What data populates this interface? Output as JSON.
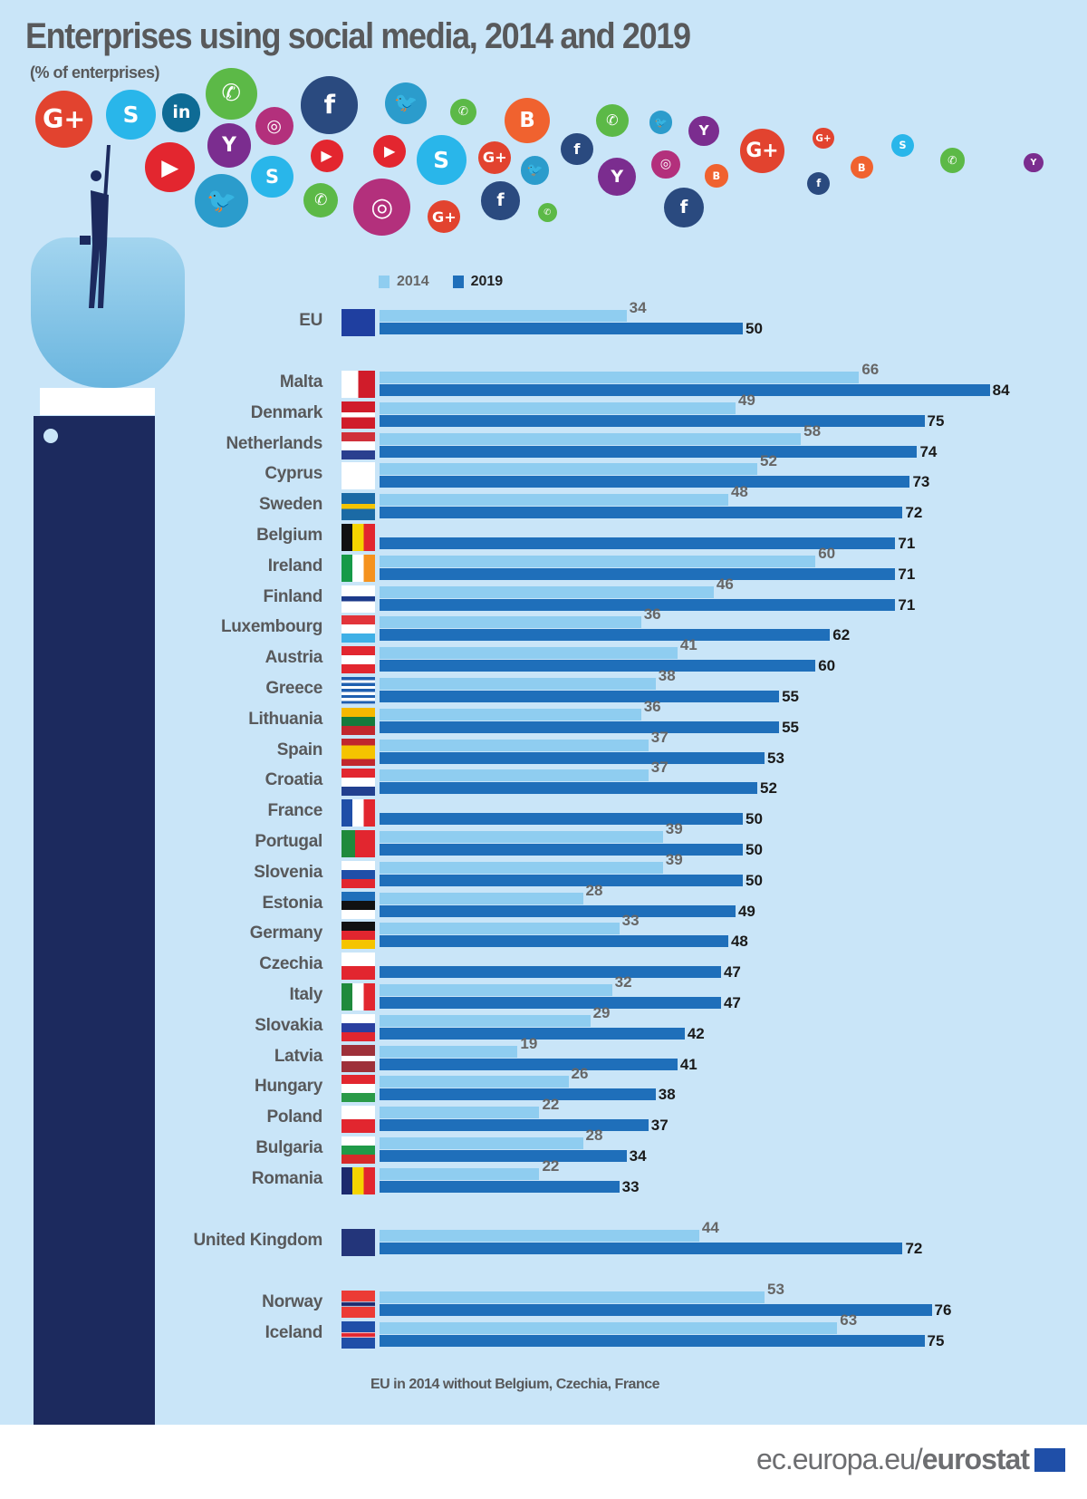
{
  "title": "Enterprises using social media, 2014 and 2019",
  "subtitle": "(% of enterprises)",
  "footnote": "EU in 2014 without Belgium, Czechia, France",
  "brand": {
    "prefix": "ec.europa.eu/",
    "name": "eurostat"
  },
  "colors": {
    "background": "#c9e5f8",
    "series_2014": "#8fcdf0",
    "series_2019": "#1f6fba",
    "text": "#58595b",
    "arm": "#1c2a5e"
  },
  "decorative_icons": [
    "google-plus",
    "skype",
    "linkedin",
    "whatsapp",
    "facebook",
    "twitter",
    "whatsapp",
    "blogger",
    "youtube",
    "yahoo",
    "instagram",
    "skype",
    "twitter",
    "youtube",
    "whatsapp",
    "instagram",
    "youtube",
    "skype",
    "google-plus",
    "google-plus",
    "twitter",
    "facebook",
    "whatsapp",
    "facebook",
    "whatsapp",
    "yahoo",
    "twitter",
    "yahoo",
    "instagram",
    "blogger",
    "facebook",
    "google-plus",
    "google-plus",
    "facebook",
    "blogger",
    "skype",
    "whatsapp",
    "yahoo"
  ],
  "chart_data": {
    "type": "bar",
    "orientation": "horizontal",
    "title": "Enterprises using social media, 2014 and 2019",
    "unit": "(% of enterprises)",
    "legend": [
      "2014",
      "2019"
    ],
    "legend_position": "top",
    "grid": false,
    "xlim": [
      0,
      84
    ],
    "categories": [
      "EU",
      "Malta",
      "Denmark",
      "Netherlands",
      "Cyprus",
      "Sweden",
      "Belgium",
      "Ireland",
      "Finland",
      "Luxembourg",
      "Austria",
      "Greece",
      "Lithuania",
      "Spain",
      "Croatia",
      "France",
      "Portugal",
      "Slovenia",
      "Estonia",
      "Germany",
      "Czechia",
      "Italy",
      "Slovakia",
      "Latvia",
      "Hungary",
      "Poland",
      "Bulgaria",
      "Romania",
      "United Kingdom",
      "Norway",
      "Iceland"
    ],
    "series": [
      {
        "name": "2014",
        "values": [
          34,
          66,
          49,
          58,
          52,
          48,
          null,
          60,
          46,
          36,
          41,
          38,
          36,
          37,
          37,
          null,
          39,
          39,
          28,
          33,
          null,
          32,
          29,
          19,
          26,
          22,
          28,
          22,
          44,
          53,
          63
        ]
      },
      {
        "name": "2019",
        "values": [
          50,
          84,
          75,
          74,
          73,
          72,
          71,
          71,
          71,
          62,
          60,
          55,
          55,
          53,
          52,
          50,
          50,
          50,
          49,
          48,
          47,
          47,
          42,
          41,
          38,
          37,
          34,
          33,
          72,
          76,
          75
        ]
      }
    ]
  }
}
